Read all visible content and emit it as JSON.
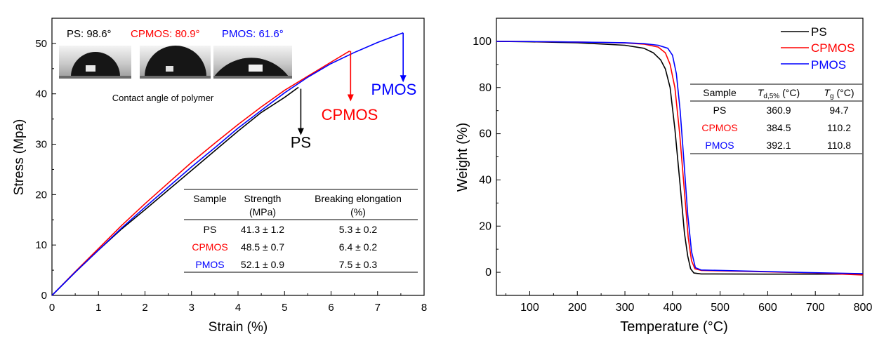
{
  "chart_data": [
    {
      "type": "line",
      "title": "",
      "xlabel": "Strain (%)",
      "ylabel": "Stress (Mpa)",
      "xlim": [
        0,
        8
      ],
      "ylim": [
        0,
        55
      ],
      "xticks": [
        0,
        1,
        2,
        3,
        4,
        5,
        6,
        7,
        8
      ],
      "yticks": [
        0,
        10,
        20,
        30,
        40,
        50
      ],
      "grid": false,
      "series": [
        {
          "name": "PS",
          "color": "#000000",
          "points": [
            [
              0,
              0
            ],
            [
              0.5,
              4.6
            ],
            [
              1,
              9.0
            ],
            [
              1.5,
              13.2
            ],
            [
              2,
              17.0
            ],
            [
              2.5,
              20.9
            ],
            [
              3,
              24.8
            ],
            [
              3.5,
              28.7
            ],
            [
              4,
              32.6
            ],
            [
              4.5,
              36.3
            ],
            [
              5,
              39.3
            ],
            [
              5.3,
              41.3
            ]
          ]
        },
        {
          "name": "CPMOS",
          "color": "#ff0000",
          "points": [
            [
              0,
              0
            ],
            [
              0.5,
              4.7
            ],
            [
              1,
              9.3
            ],
            [
              1.5,
              13.9
            ],
            [
              2,
              18.2
            ],
            [
              2.5,
              22.3
            ],
            [
              3,
              26.4
            ],
            [
              3.5,
              30.2
            ],
            [
              4,
              33.9
            ],
            [
              4.5,
              37.4
            ],
            [
              5,
              40.7
            ],
            [
              5.5,
              43.5
            ],
            [
              6,
              46.3
            ],
            [
              6.4,
              48.5
            ]
          ]
        },
        {
          "name": "PMOS",
          "color": "#0000ff",
          "points": [
            [
              0,
              0
            ],
            [
              0.5,
              4.6
            ],
            [
              1,
              9.0
            ],
            [
              1.5,
              13.4
            ],
            [
              2,
              17.5
            ],
            [
              2.5,
              21.5
            ],
            [
              3,
              25.5
            ],
            [
              3.5,
              29.3
            ],
            [
              4,
              33.2
            ],
            [
              4.5,
              36.7
            ],
            [
              5,
              40.2
            ],
            [
              5.5,
              43.3
            ],
            [
              6,
              46.0
            ],
            [
              6.5,
              48.2
            ],
            [
              7,
              50.2
            ],
            [
              7.55,
              52.1
            ]
          ]
        }
      ],
      "annotations": [
        {
          "text": "PS",
          "color": "#000000",
          "arrow_x": 5.35,
          "arrow_from": 41.0,
          "arrow_to": 31.8,
          "label_x": 5.35,
          "label_y": 29.3
        },
        {
          "text": "CPMOS",
          "color": "#ff0000",
          "arrow_x": 6.42,
          "arrow_from": 48.5,
          "arrow_to": 38.5,
          "label_x": 6.4,
          "label_y": 34.8
        },
        {
          "text": "PMOS",
          "color": "#0000ff",
          "arrow_x": 7.55,
          "arrow_from": 52.1,
          "arrow_to": 42.3,
          "label_x": 7.35,
          "label_y": 39.8
        }
      ],
      "contact_angle": {
        "labels": [
          {
            "text": "PS: 98.6°",
            "color": "#000000"
          },
          {
            "text": "CPMOS: 80.9°",
            "color": "#ff0000"
          },
          {
            "text": "PMOS: 61.6°",
            "color": "#0000ff"
          }
        ],
        "caption": "Contact angle of polymer"
      },
      "table": {
        "headers": [
          "Sample",
          "Strength",
          "Breaking elongation"
        ],
        "units": [
          "",
          "(MPa)",
          "(%)"
        ],
        "rows": [
          {
            "sample": "PS",
            "color": "#000000",
            "strength": "41.3 ± 1.2",
            "elongation": "5.3 ± 0.2"
          },
          {
            "sample": "CPMOS",
            "color": "#ff0000",
            "strength": "48.5 ± 0.7",
            "elongation": "6.4 ± 0.2"
          },
          {
            "sample": "PMOS",
            "color": "#0000ff",
            "strength": "52.1 ± 0.9",
            "elongation": "7.5 ± 0.3"
          }
        ]
      }
    },
    {
      "type": "line",
      "title": "",
      "xlabel": "Temperature (°C)",
      "ylabel": "Weight (%)",
      "xlim": [
        30,
        800
      ],
      "ylim": [
        -10,
        110
      ],
      "xticks": [
        100,
        200,
        300,
        400,
        500,
        600,
        700,
        800
      ],
      "yticks": [
        0,
        20,
        40,
        60,
        80,
        100
      ],
      "grid": false,
      "legend_position": "top-right",
      "legend": [
        {
          "name": "PS",
          "color": "#000000"
        },
        {
          "name": "CPMOS",
          "color": "#ff0000"
        },
        {
          "name": "PMOS",
          "color": "#0000ff"
        }
      ],
      "series": [
        {
          "name": "PS",
          "color": "#000000",
          "points": [
            [
              30,
              100
            ],
            [
              100,
              99.8
            ],
            [
              200,
              99.4
            ],
            [
              300,
              98.3
            ],
            [
              340,
              97.0
            ],
            [
              360,
              95.0
            ],
            [
              375,
              92.0
            ],
            [
              385,
              88.0
            ],
            [
              395,
              80.0
            ],
            [
              405,
              62.0
            ],
            [
              415,
              40.0
            ],
            [
              425,
              17.0
            ],
            [
              432,
              7.0
            ],
            [
              438,
              1.5
            ],
            [
              445,
              -0.3
            ],
            [
              460,
              -0.7
            ],
            [
              600,
              -0.8
            ],
            [
              800,
              -0.8
            ]
          ]
        },
        {
          "name": "CPMOS",
          "color": "#ff0000",
          "points": [
            [
              30,
              100
            ],
            [
              100,
              99.9
            ],
            [
              200,
              99.7
            ],
            [
              300,
              99.3
            ],
            [
              340,
              98.8
            ],
            [
              370,
              97.5
            ],
            [
              385,
              95.0
            ],
            [
              395,
              90.0
            ],
            [
              405,
              80.0
            ],
            [
              415,
              60.0
            ],
            [
              425,
              35.0
            ],
            [
              433,
              15.0
            ],
            [
              440,
              5.0
            ],
            [
              447,
              1.5
            ],
            [
              460,
              0.8
            ],
            [
              600,
              0.2
            ],
            [
              700,
              -0.3
            ],
            [
              800,
              -1.2
            ]
          ]
        },
        {
          "name": "PMOS",
          "color": "#0000ff",
          "points": [
            [
              30,
              100
            ],
            [
              100,
              99.9
            ],
            [
              200,
              99.7
            ],
            [
              300,
              99.4
            ],
            [
              340,
              99.0
            ],
            [
              370,
              98.3
            ],
            [
              390,
              97.0
            ],
            [
              400,
              94.0
            ],
            [
              408,
              86.0
            ],
            [
              416,
              70.0
            ],
            [
              424,
              48.0
            ],
            [
              432,
              25.0
            ],
            [
              440,
              9.0
            ],
            [
              448,
              2.0
            ],
            [
              460,
              1.0
            ],
            [
              600,
              0.3
            ],
            [
              700,
              -0.2
            ],
            [
              800,
              -0.6
            ]
          ]
        }
      ],
      "table": {
        "headers": [
          "Sample",
          "T",
          "T"
        ],
        "header_subscripts": [
          "",
          "d,5%",
          "g"
        ],
        "header_units": [
          "",
          " (°C)",
          " (°C)"
        ],
        "rows": [
          {
            "sample": "PS",
            "color": "#000000",
            "td": "360.9",
            "tg": "94.7"
          },
          {
            "sample": "CPMOS",
            "color": "#ff0000",
            "td": "384.5",
            "tg": "110.2"
          },
          {
            "sample": "PMOS",
            "color": "#0000ff",
            "td": "392.1",
            "tg": "110.8"
          }
        ]
      }
    }
  ]
}
